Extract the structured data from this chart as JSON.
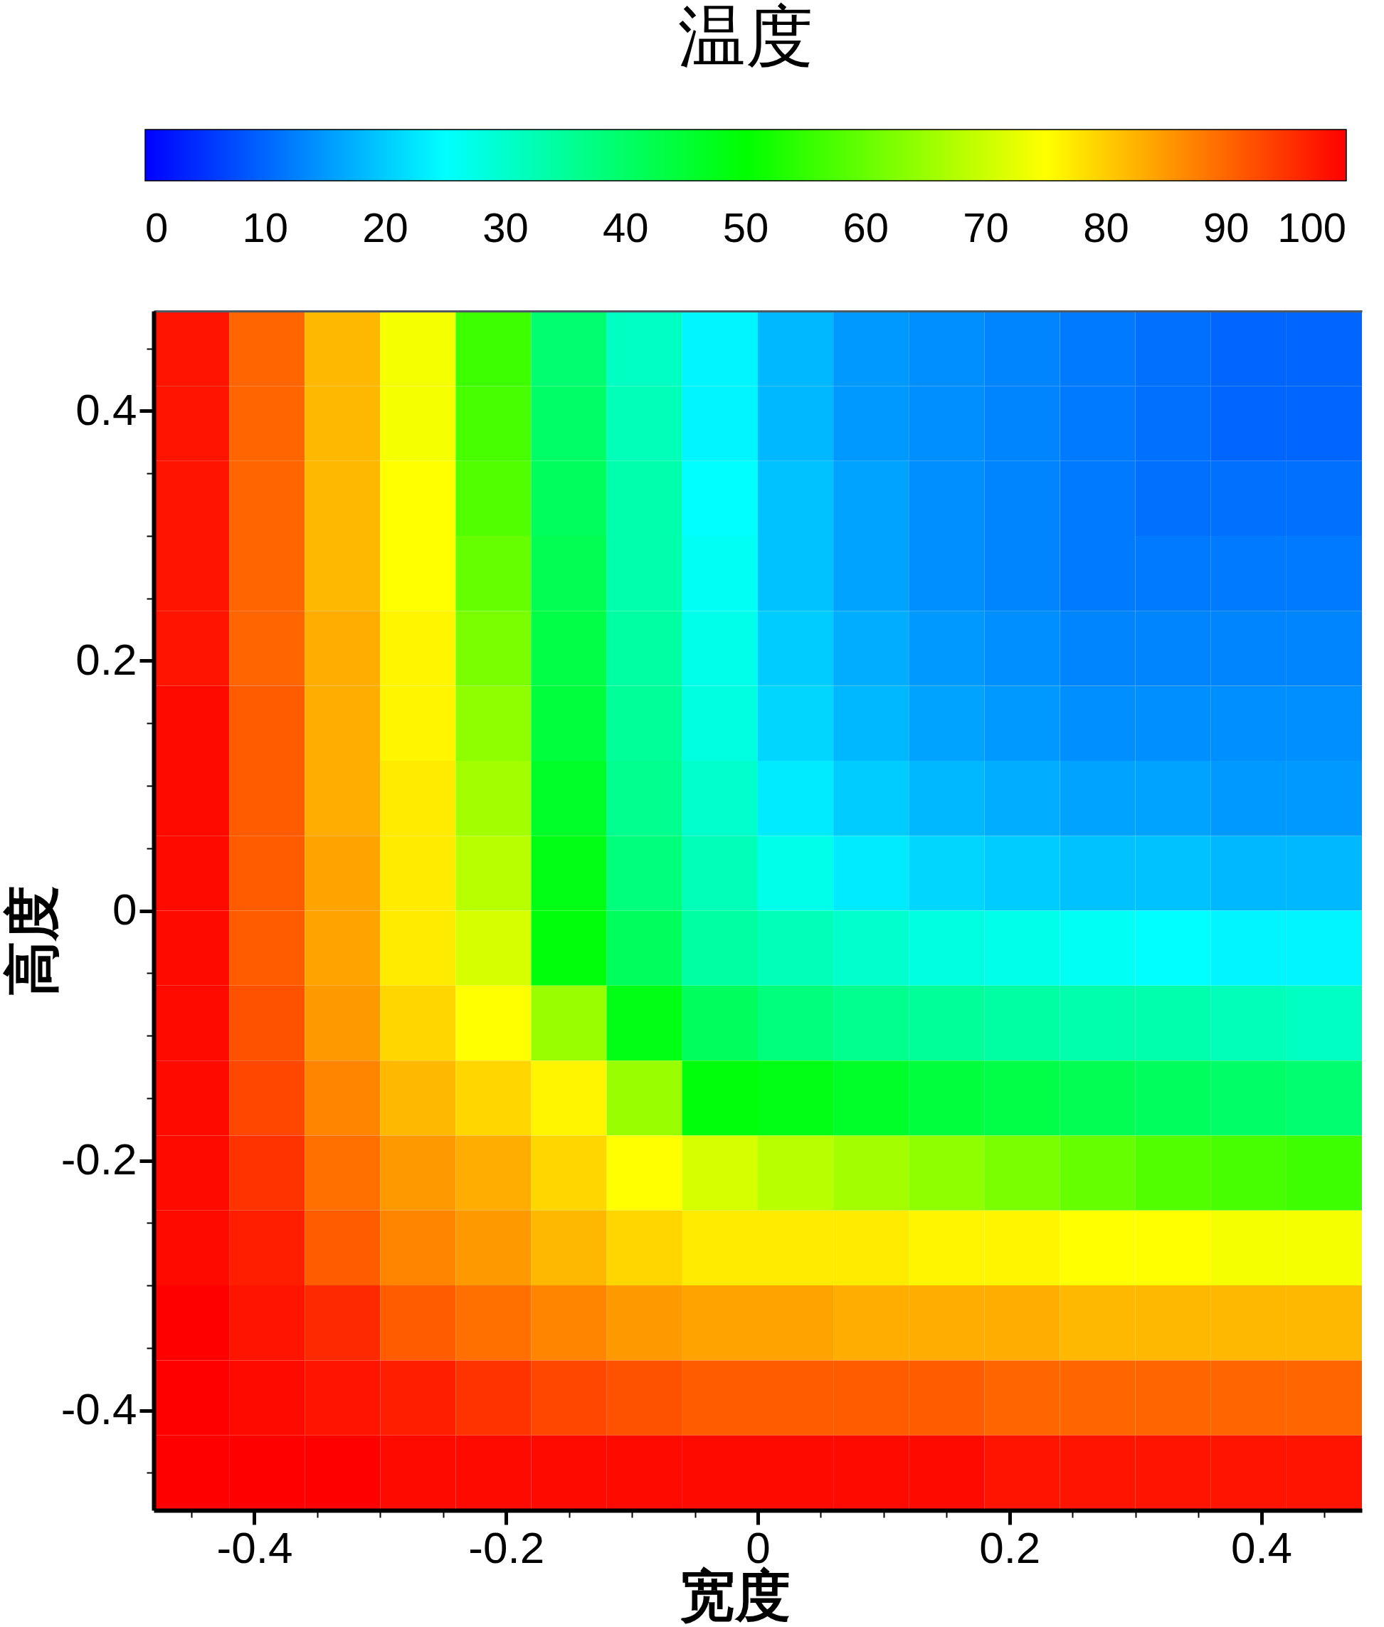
{
  "chart_data": {
    "type": "heatmap",
    "clabel": "温度",
    "xlabel": "宽度",
    "ylabel": "高度",
    "x": [
      -0.45,
      -0.39,
      -0.33,
      -0.27,
      -0.21,
      -0.15,
      -0.09,
      -0.03,
      0.03,
      0.09,
      0.15,
      0.21,
      0.27,
      0.33,
      0.39,
      0.45
    ],
    "y": [
      0.45,
      0.39,
      0.33,
      0.27,
      0.21,
      0.15,
      0.09,
      0.03,
      -0.03,
      -0.09,
      -0.15,
      -0.21,
      -0.27,
      -0.33,
      -0.39,
      -0.45
    ],
    "xlim": [
      -0.48,
      0.48
    ],
    "ylim": [
      -0.48,
      0.48
    ],
    "xticks": [
      {
        "value": -0.45,
        "label": null
      },
      -0.4,
      {
        "value": -0.35,
        "label": null
      },
      {
        "value": -0.3,
        "label": null
      },
      {
        "value": -0.25,
        "label": null
      },
      -0.2,
      {
        "value": -0.15,
        "label": null
      },
      {
        "value": -0.1,
        "label": null
      },
      {
        "value": -0.05,
        "label": null
      },
      0,
      {
        "value": 0.05,
        "label": null
      },
      {
        "value": 0.1,
        "label": null
      },
      {
        "value": 0.15,
        "label": null
      },
      0.2,
      {
        "value": 0.25,
        "label": null
      },
      {
        "value": 0.3,
        "label": null
      },
      {
        "value": 0.35,
        "label": null
      },
      0.4,
      {
        "value": 0.45,
        "label": null
      }
    ],
    "yticks": [
      {
        "value": -0.45,
        "label": null
      },
      -0.4,
      {
        "value": -0.35,
        "label": null
      },
      {
        "value": -0.3,
        "label": null
      },
      {
        "value": -0.25,
        "label": null
      },
      -0.2,
      {
        "value": -0.15,
        "label": null
      },
      {
        "value": -0.1,
        "label": null
      },
      {
        "value": -0.05,
        "label": null
      },
      0,
      {
        "value": 0.05,
        "label": null
      },
      {
        "value": 0.1,
        "label": null
      },
      {
        "value": 0.15,
        "label": null
      },
      0.2,
      {
        "value": 0.25,
        "label": null
      },
      {
        "value": 0.3,
        "label": null
      },
      {
        "value": 0.35,
        "label": null
      },
      0.4,
      {
        "value": 0.45,
        "label": null
      }
    ],
    "clim": [
      0,
      100
    ],
    "cticks": [
      0,
      10,
      20,
      30,
      40,
      50,
      60,
      70,
      80,
      90,
      100
    ],
    "cells": [
      [
        98,
        90,
        82,
        74,
        56,
        39,
        31,
        24,
        18,
        15,
        14,
        13,
        12,
        11,
        10,
        10
      ],
      [
        98,
        90,
        82,
        74,
        57,
        40,
        32,
        24,
        18,
        15,
        14,
        13,
        12,
        11,
        10,
        10
      ],
      [
        98,
        90,
        82,
        75,
        58,
        41,
        33,
        25,
        19,
        16,
        14,
        13,
        12,
        11,
        11,
        11
      ],
      [
        98,
        90,
        82,
        75,
        60,
        42,
        33,
        26,
        19,
        16,
        14,
        13,
        12,
        12,
        12,
        12
      ],
      [
        98,
        90,
        83,
        76,
        62,
        43,
        34,
        27,
        20,
        17,
        15,
        14,
        13,
        13,
        13,
        13
      ],
      [
        99,
        91,
        83,
        76,
        64,
        44,
        35,
        28,
        21,
        18,
        16,
        15,
        14,
        14,
        14,
        14
      ],
      [
        99,
        91,
        83,
        77,
        66,
        46,
        36,
        30,
        23,
        20,
        18,
        17,
        16,
        16,
        15,
        15
      ],
      [
        99,
        91,
        84,
        77,
        68,
        48,
        38,
        32,
        27,
        23,
        21,
        20,
        19,
        19,
        18,
        18
      ],
      [
        99,
        91,
        84,
        77,
        71,
        49,
        41,
        34,
        32,
        30,
        28,
        27,
        26,
        25,
        24,
        24
      ],
      [
        99,
        92,
        85,
        79,
        75,
        65,
        48,
        41,
        38,
        36,
        35,
        34,
        33,
        33,
        32,
        31
      ],
      [
        99,
        93,
        87,
        82,
        79,
        76,
        65,
        49,
        48,
        46,
        44,
        43,
        42,
        41,
        40,
        39
      ],
      [
        99,
        95,
        89,
        85,
        83,
        79,
        75,
        71,
        68,
        66,
        64,
        62,
        60,
        58,
        57,
        56
      ],
      [
        99,
        97,
        91,
        87,
        85,
        82,
        79,
        77,
        77,
        77,
        76,
        76,
        75,
        75,
        74,
        74
      ],
      [
        100,
        98,
        96,
        91,
        89,
        87,
        85,
        84,
        84,
        83,
        83,
        83,
        82,
        82,
        82,
        82
      ],
      [
        100,
        99,
        98,
        97,
        95,
        93,
        92,
        91,
        91,
        91,
        91,
        90,
        90,
        90,
        90,
        90
      ],
      [
        100,
        100,
        100,
        99,
        99,
        99,
        99,
        99,
        99,
        99,
        99,
        98,
        98,
        98,
        98,
        98
      ]
    ]
  }
}
